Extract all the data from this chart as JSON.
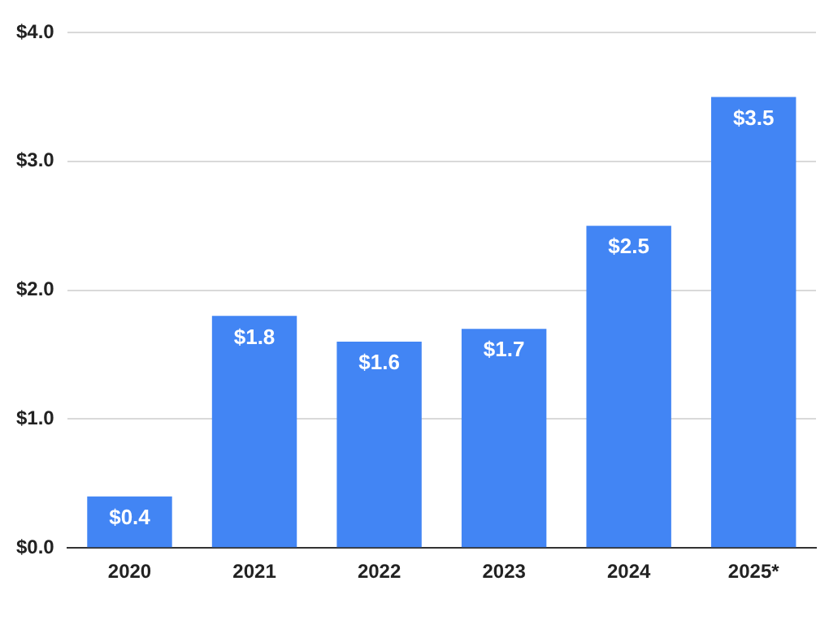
{
  "chart_data": {
    "type": "bar",
    "categories": [
      "2020",
      "2021",
      "2022",
      "2023",
      "2024",
      "2025*"
    ],
    "values": [
      0.4,
      1.8,
      1.6,
      1.7,
      2.5,
      3.5
    ],
    "color": "#4285f4",
    "value_labels": [
      "$0.4",
      "$1.8",
      "$1.6",
      "$1.7",
      "$2.5",
      "$3.5"
    ],
    "ylim": [
      0,
      4
    ],
    "yticks": [
      {
        "value": 0,
        "label": "$0.0"
      },
      {
        "value": 1,
        "label": "$1.0"
      },
      {
        "value": 2,
        "label": "$2.0"
      },
      {
        "value": 3,
        "label": "$3.0"
      },
      {
        "value": 4,
        "label": "$4.0"
      }
    ],
    "grid": "y"
  }
}
